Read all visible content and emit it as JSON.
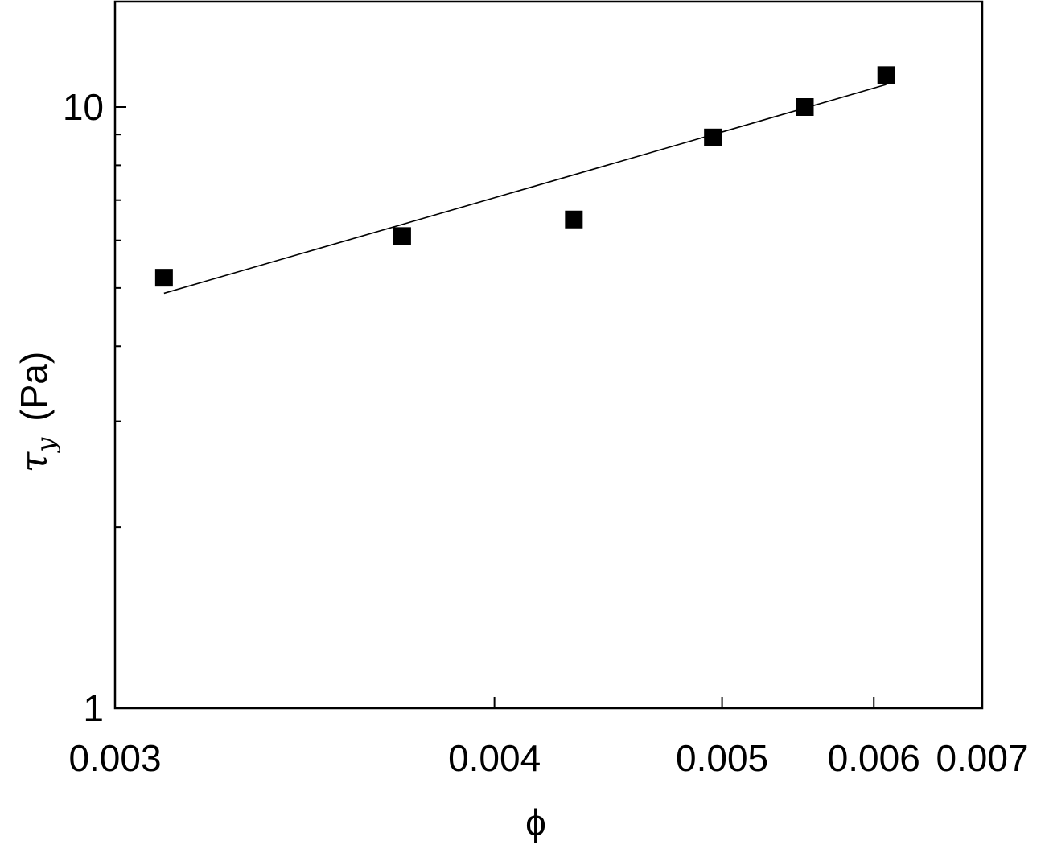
{
  "chart_data": {
    "type": "scatter",
    "title": "",
    "xlabel": "ϕ",
    "ylabel": {
      "symbol": "τ",
      "subscript": "y",
      "unit": "(Pa)"
    },
    "xlim": [
      0.003,
      0.007
    ],
    "ylim": [
      1,
      15
    ],
    "yscale": "log",
    "xscale": "reciprocal",
    "grid": false,
    "legend": "none",
    "x_ticks": [
      {
        "value": 0.003,
        "label": "0.003"
      },
      {
        "value": 0.004,
        "label": "0.004"
      },
      {
        "value": 0.005,
        "label": "0.005"
      },
      {
        "value": 0.006,
        "label": "0.006"
      },
      {
        "value": 0.007,
        "label": "0.007"
      }
    ],
    "y_major_ticks": [
      {
        "value": 1,
        "label": "1"
      },
      {
        "value": 10,
        "label": "10"
      }
    ],
    "y_minor_ticks": [
      2,
      3,
      4,
      5,
      6,
      7,
      8,
      9
    ],
    "series": [
      {
        "marker": "square",
        "color": "#000000",
        "points": [
          {
            "x": 0.0031,
            "y": 5.2
          },
          {
            "x": 0.0037,
            "y": 6.1
          },
          {
            "x": 0.0043,
            "y": 6.5
          },
          {
            "x": 0.00495,
            "y": 8.9
          },
          {
            "x": 0.0055,
            "y": 10.0
          },
          {
            "x": 0.0061,
            "y": 11.3
          }
        ]
      }
    ],
    "fit_line": {
      "color": "#000000",
      "points": [
        {
          "x": 0.0031,
          "y": 4.9
        },
        {
          "x": 0.0061,
          "y": 10.9
        }
      ]
    }
  }
}
